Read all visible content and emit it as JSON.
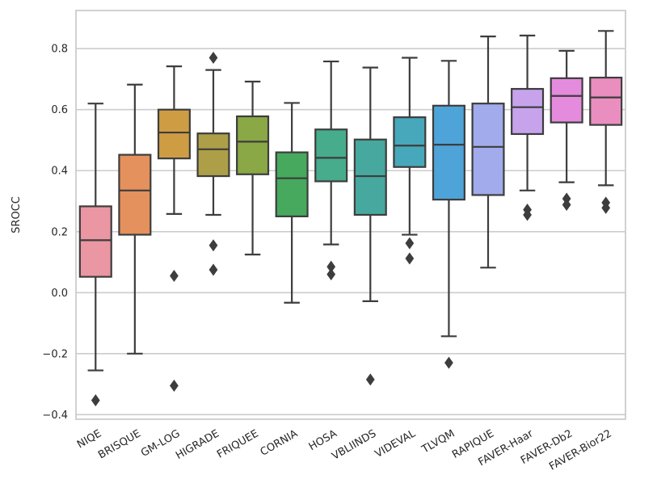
{
  "chart_data": {
    "type": "boxplot",
    "title": "",
    "xlabel": "",
    "ylabel": "SROCC",
    "ylim": [
      -0.415,
      0.925
    ],
    "grid": "horizontal",
    "yticks": [
      -0.4,
      -0.2,
      0.0,
      0.2,
      0.4,
      0.6,
      0.8
    ],
    "ytick_labels": [
      "−0.4",
      "−0.2",
      "0.0",
      "0.2",
      "0.4",
      "0.6",
      "0.8"
    ],
    "categories": [
      "NIQE",
      "BRISQUE",
      "GM-LOG",
      "HIGRADE",
      "FRIQUEE",
      "CORNIA",
      "HOSA",
      "VBLIINDS",
      "VIDEVAL",
      "TLVQM",
      "RAPIQUE",
      "FAVER-Haar",
      "FAVER-Db2",
      "FAVER-Bior22"
    ],
    "boxes": [
      {
        "name": "NIQE",
        "color": "#ea96a3",
        "whisker_low": -0.255,
        "q1": 0.052,
        "median": 0.172,
        "q3": 0.283,
        "whisker_high": 0.62,
        "outliers": [
          -0.353
        ]
      },
      {
        "name": "BRISQUE",
        "color": "#e4915e",
        "whisker_low": -0.2,
        "q1": 0.19,
        "median": 0.335,
        "q3": 0.452,
        "whisker_high": 0.682,
        "outliers": []
      },
      {
        "name": "GM-LOG",
        "color": "#ce9d43",
        "whisker_low": 0.258,
        "q1": 0.44,
        "median": 0.525,
        "q3": 0.6,
        "whisker_high": 0.742,
        "outliers": [
          0.055,
          -0.305
        ]
      },
      {
        "name": "HIGRADE",
        "color": "#ac9f47",
        "whisker_low": 0.255,
        "q1": 0.382,
        "median": 0.47,
        "q3": 0.522,
        "whisker_high": 0.73,
        "outliers": [
          0.77,
          0.155,
          0.075
        ]
      },
      {
        "name": "FRIQUEE",
        "color": "#8aa845",
        "whisker_low": 0.125,
        "q1": 0.388,
        "median": 0.495,
        "q3": 0.578,
        "whisker_high": 0.692,
        "outliers": []
      },
      {
        "name": "CORNIA",
        "color": "#46a95d",
        "whisker_low": -0.033,
        "q1": 0.25,
        "median": 0.375,
        "q3": 0.46,
        "whisker_high": 0.622,
        "outliers": []
      },
      {
        "name": "HOSA",
        "color": "#47ac8c",
        "whisker_low": 0.158,
        "q1": 0.365,
        "median": 0.442,
        "q3": 0.535,
        "whisker_high": 0.758,
        "outliers": [
          0.085,
          0.06
        ]
      },
      {
        "name": "VBLIINDS",
        "color": "#46a89e",
        "whisker_low": -0.028,
        "q1": 0.255,
        "median": 0.382,
        "q3": 0.502,
        "whisker_high": 0.738,
        "outliers": [
          -0.285
        ]
      },
      {
        "name": "VIDEVAL",
        "color": "#47a8bb",
        "whisker_low": 0.19,
        "q1": 0.412,
        "median": 0.482,
        "q3": 0.575,
        "whisker_high": 0.77,
        "outliers": [
          0.162,
          0.112
        ]
      },
      {
        "name": "TLVQM",
        "color": "#4ea3d8",
        "whisker_low": -0.143,
        "q1": 0.305,
        "median": 0.485,
        "q3": 0.613,
        "whisker_high": 0.76,
        "outliers": [
          -0.23
        ]
      },
      {
        "name": "RAPIQUE",
        "color": "#a2abeb",
        "whisker_low": 0.082,
        "q1": 0.32,
        "median": 0.478,
        "q3": 0.62,
        "whisker_high": 0.84,
        "outliers": []
      },
      {
        "name": "FAVER-Haar",
        "color": "#c7a3ec",
        "whisker_low": 0.335,
        "q1": 0.52,
        "median": 0.608,
        "q3": 0.668,
        "whisker_high": 0.843,
        "outliers": [
          0.272,
          0.255
        ]
      },
      {
        "name": "FAVER-Db2",
        "color": "#e58bdd",
        "whisker_low": 0.362,
        "q1": 0.558,
        "median": 0.645,
        "q3": 0.703,
        "whisker_high": 0.793,
        "outliers": [
          0.308,
          0.288
        ]
      },
      {
        "name": "FAVER-Bior22",
        "color": "#e98ebf",
        "whisker_low": 0.352,
        "q1": 0.55,
        "median": 0.64,
        "q3": 0.705,
        "whisker_high": 0.858,
        "outliers": [
          0.295,
          0.278
        ]
      }
    ]
  }
}
